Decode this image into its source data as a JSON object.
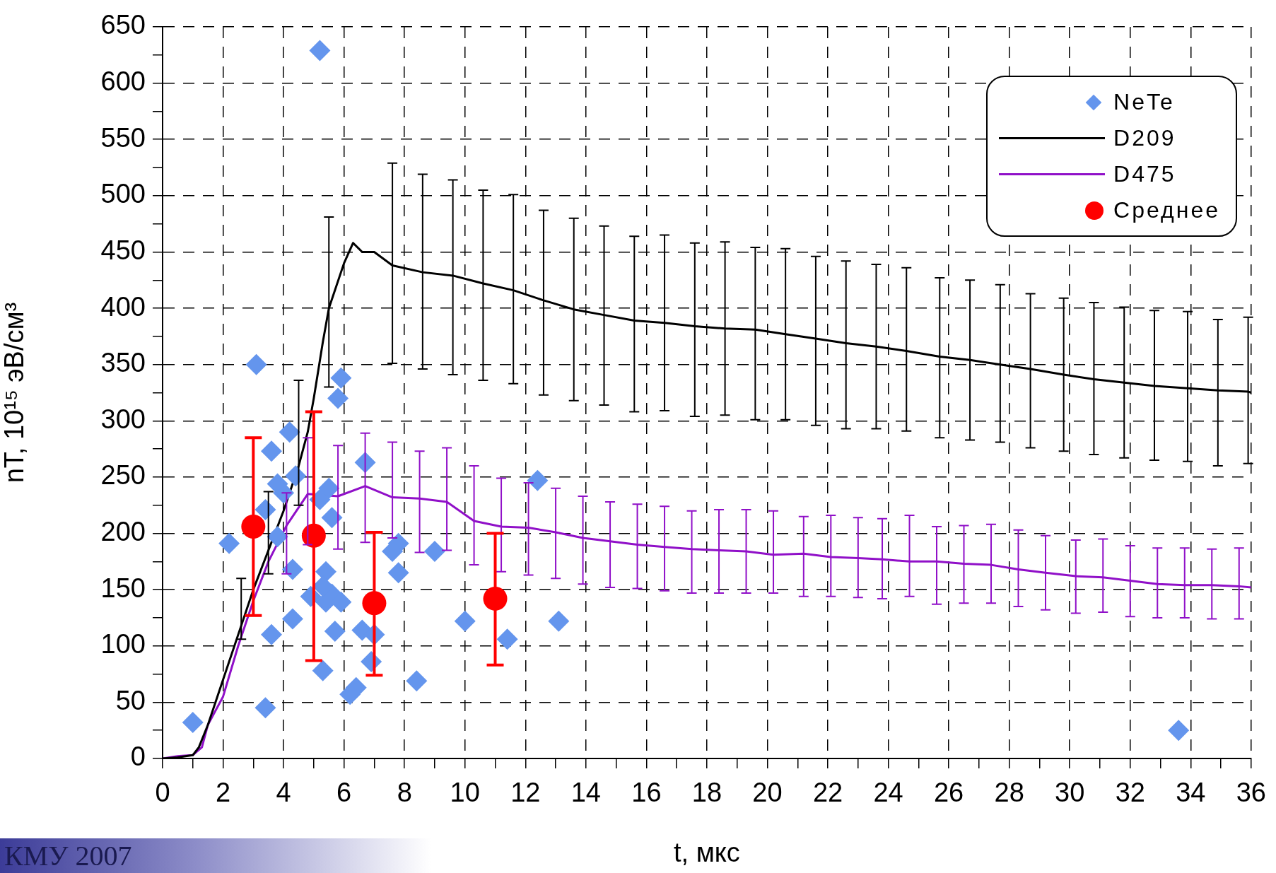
{
  "chart_data": {
    "type": "scatter",
    "xlabel": "t, мкс",
    "ylabel": "nT, 10¹⁵ эВ/см³",
    "xlim": [
      0,
      36
    ],
    "ylim": [
      0,
      650
    ],
    "xticks": [
      0,
      {
        "value": 1,
        "label": null
      },
      2,
      {
        "value": 3,
        "label": null
      },
      4,
      {
        "value": 5,
        "label": null
      },
      6,
      {
        "value": 7,
        "label": null
      },
      8,
      {
        "value": 9,
        "label": null
      },
      10,
      {
        "value": 11,
        "label": null
      },
      12,
      {
        "value": 13,
        "label": null
      },
      14,
      {
        "value": 15,
        "label": null
      },
      16,
      {
        "value": 17,
        "label": null
      },
      18,
      {
        "value": 19,
        "label": null
      },
      20,
      {
        "value": 21,
        "label": null
      },
      22,
      {
        "value": 23,
        "label": null
      },
      24,
      {
        "value": 25,
        "label": null
      },
      26,
      {
        "value": 27,
        "label": null
      },
      28,
      {
        "value": 29,
        "label": null
      },
      30,
      {
        "value": 31,
        "label": null
      },
      32,
      {
        "value": 33,
        "label": null
      },
      34,
      {
        "value": 35,
        "label": null
      },
      36
    ],
    "yticks": [
      0,
      {
        "value": 25,
        "label": null
      },
      50,
      {
        "value": 75,
        "label": null
      },
      100,
      {
        "value": 125,
        "label": null
      },
      150,
      {
        "value": 175,
        "label": null
      },
      200,
      {
        "value": 225,
        "label": null
      },
      250,
      {
        "value": 275,
        "label": null
      },
      300,
      {
        "value": 325,
        "label": null
      },
      350,
      {
        "value": 375,
        "label": null
      },
      400,
      {
        "value": 425,
        "label": null
      },
      450,
      {
        "value": 475,
        "label": null
      },
      500,
      {
        "value": 525,
        "label": null
      },
      550,
      {
        "value": 575,
        "label": null
      },
      600,
      {
        "value": 625,
        "label": null
      },
      650
    ],
    "grid": true,
    "legend": "top right",
    "annotations": [
      "КМУ 2007"
    ],
    "series": [
      {
        "name": "NeTe",
        "type": "scatter",
        "marker": "diamond",
        "color": "#6495ed",
        "x": [
          5.2,
          3.1,
          5.9,
          5.8,
          4.2,
          3.6,
          12.4,
          6.7,
          4.4,
          3.8,
          4.0,
          3.4,
          5.5,
          5.2,
          5.6,
          2.2,
          3.8,
          7.8,
          7.6,
          9.0,
          7.8,
          4.3,
          5.4,
          4.9,
          5.4,
          5.6,
          5.9,
          5.3,
          3.6,
          4.3,
          5.7,
          6.6,
          7.0,
          10.0,
          13.1,
          11.4,
          6.9,
          5.3,
          8.4,
          6.4,
          6.2,
          3.4,
          1.0,
          33.6
        ],
        "values": [
          629,
          350,
          338,
          320,
          290,
          273,
          247,
          263,
          251,
          244,
          236,
          221,
          240,
          230,
          214,
          191,
          197,
          191,
          184,
          184,
          165,
          168,
          166,
          144,
          139,
          146,
          139,
          153,
          110,
          124,
          113,
          114,
          110,
          122,
          122,
          106,
          86,
          78,
          69,
          63,
          57,
          45,
          32,
          25
        ]
      },
      {
        "name": "D209",
        "type": "line",
        "marker": "none",
        "line_style": "solid",
        "color": "#000000",
        "x": [
          0,
          0.5,
          1,
          1.2,
          1.5,
          2,
          2.6,
          3,
          3.5,
          4,
          4.5,
          4.8,
          5,
          5.3,
          5.5,
          6,
          6.3,
          6.6,
          7,
          7.6,
          8.6,
          9.6,
          10.6,
          11.6,
          12.6,
          13.6,
          14.6,
          15.6,
          16.6,
          17.6,
          18.6,
          19.6,
          20.6,
          21.6,
          22.6,
          23.6,
          24.6,
          25.7,
          26.7,
          27.7,
          28.7,
          29.8,
          30.8,
          31.8,
          32.8,
          33.9,
          34.9,
          35.9,
          36
        ],
        "values": [
          0,
          1,
          3,
          10,
          30,
          70,
          118,
          150,
          185,
          220,
          260,
          290,
          320,
          370,
          400,
          440,
          458,
          450,
          450,
          438,
          432,
          429,
          422,
          416,
          407,
          399,
          394,
          389,
          387,
          384,
          382,
          381,
          377,
          373,
          369,
          366,
          362,
          357,
          354,
          350,
          346,
          341,
          337,
          334,
          331,
          329,
          327,
          326,
          325
        ],
        "errors": [
          null,
          null,
          null,
          null,
          null,
          null,
          [
            106,
            160
          ],
          null,
          [
            164,
            237
          ],
          null,
          [
            225,
            336
          ],
          null,
          null,
          null,
          [
            330,
            481
          ],
          null,
          null,
          null,
          null,
          [
            351,
            529
          ],
          [
            346,
            519
          ],
          [
            341,
            514
          ],
          [
            336,
            505
          ],
          [
            333,
            501
          ],
          [
            323,
            487
          ],
          [
            318,
            480
          ],
          [
            314,
            473
          ],
          [
            308,
            464
          ],
          [
            309,
            465
          ],
          [
            304,
            458
          ],
          [
            305,
            459
          ],
          [
            301,
            454
          ],
          [
            301,
            453
          ],
          [
            296,
            446
          ],
          [
            293,
            442
          ],
          [
            293,
            439
          ],
          [
            291,
            436
          ],
          [
            285,
            427
          ],
          [
            283,
            425
          ],
          [
            281,
            421
          ],
          [
            276,
            413
          ],
          [
            273,
            409
          ],
          [
            270,
            405
          ],
          [
            267,
            401
          ],
          [
            265,
            398
          ],
          [
            264,
            397
          ],
          [
            260,
            390
          ],
          [
            262,
            392
          ],
          null
        ]
      },
      {
        "name": "D475",
        "type": "line",
        "marker": "none",
        "line_style": "solid",
        "color": "#9010c8",
        "x": [
          0,
          0.5,
          1,
          1.3,
          1.5,
          2,
          2.5,
          3,
          3.5,
          4.1,
          4.8,
          5.8,
          6.7,
          7.6,
          8.5,
          9.4,
          10.3,
          11.2,
          12.1,
          13,
          13.9,
          14.8,
          15.7,
          16.6,
          17.5,
          18.4,
          19.3,
          20.2,
          21.2,
          22.1,
          23,
          23.8,
          24.7,
          25.6,
          26.5,
          27.4,
          28.3,
          29.2,
          30.2,
          31.1,
          32,
          32.9,
          33.8,
          34.7,
          35.6,
          36
        ],
        "values": [
          0,
          2,
          3,
          10,
          30,
          55,
          100,
          140,
          175,
          207,
          235,
          233,
          242,
          232,
          231,
          228,
          211,
          206,
          205,
          201,
          196,
          193,
          190,
          188,
          186,
          185,
          184,
          181,
          182,
          179,
          178,
          177,
          175,
          175,
          173,
          172,
          168,
          165,
          162,
          161,
          158,
          155,
          154,
          154,
          153,
          152
        ],
        "errors": [
          null,
          null,
          null,
          null,
          null,
          null,
          null,
          null,
          null,
          [
            164,
            236
          ],
          [
            190,
            285
          ],
          [
            186,
            278
          ],
          [
            192,
            289
          ],
          [
            196,
            281
          ],
          [
            183,
            273
          ],
          [
            185,
            276
          ],
          [
            172,
            260
          ],
          [
            166,
            249
          ],
          [
            163,
            245
          ],
          [
            160,
            240
          ],
          [
            155,
            233
          ],
          [
            152,
            228
          ],
          [
            151,
            226
          ],
          [
            149,
            224
          ],
          [
            147,
            220
          ],
          [
            147,
            221
          ],
          [
            147,
            221
          ],
          [
            147,
            220
          ],
          [
            144,
            215
          ],
          [
            144,
            216
          ],
          [
            143,
            214
          ],
          [
            142,
            213
          ],
          [
            144,
            216
          ],
          [
            137,
            206
          ],
          [
            138,
            207
          ],
          [
            138,
            208
          ],
          [
            135,
            203
          ],
          [
            132,
            198
          ],
          [
            129,
            194
          ],
          [
            130,
            195
          ],
          [
            126,
            189
          ],
          [
            125,
            187
          ],
          [
            125,
            187
          ],
          [
            124,
            186
          ],
          [
            124,
            187
          ],
          null
        ]
      },
      {
        "name": "Среднее",
        "type": "scatter",
        "marker": "circle",
        "color": "#ff0000",
        "x": [
          3,
          5,
          7,
          11
        ],
        "values": [
          206,
          198,
          138,
          142
        ],
        "errors": [
          [
            127,
            285
          ],
          [
            87,
            308
          ],
          [
            74,
            201
          ],
          [
            83,
            200
          ]
        ]
      }
    ]
  }
}
